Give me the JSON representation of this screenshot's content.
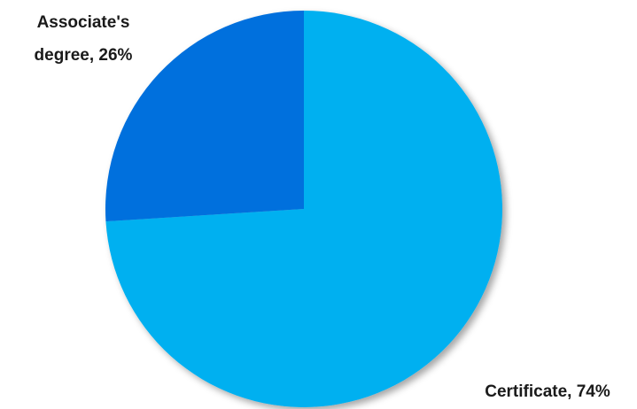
{
  "chart_data": {
    "type": "pie",
    "title": "",
    "slices": [
      {
        "label": "Certificate",
        "value": 74,
        "color": "#00b0f0"
      },
      {
        "label": "Associate's degree",
        "value": 26,
        "color": "#0070dd"
      }
    ],
    "labels": {
      "certificate_line1": "Certificate, 74%",
      "associate_line1": "Associate's",
      "associate_line2": "degree, 26%"
    },
    "start_angle_deg": 0,
    "direction": "clockwise",
    "legend": "none",
    "shadow": true
  }
}
